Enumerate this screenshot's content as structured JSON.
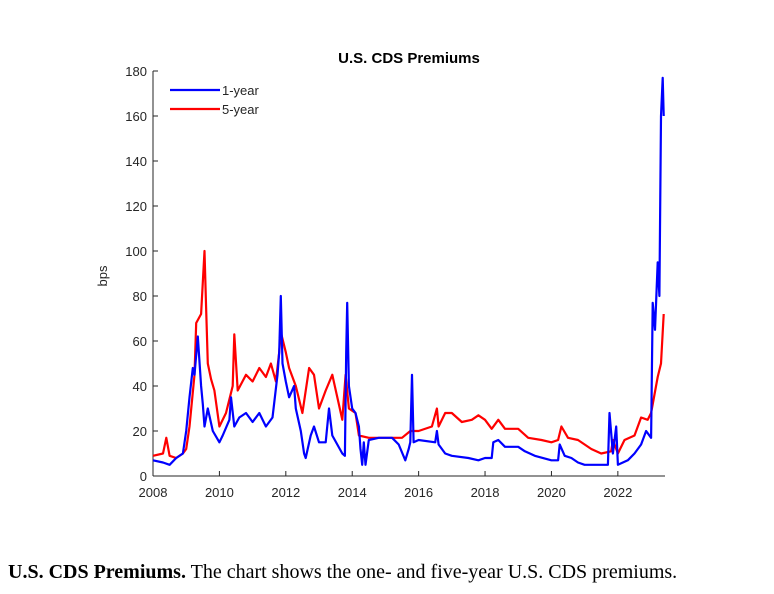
{
  "chart_data": {
    "type": "line",
    "title": "U.S. CDS Premiums",
    "xlabel": "",
    "ylabel": "bps",
    "xlim": [
      2008,
      2023.42
    ],
    "ylim": [
      0,
      180
    ],
    "xticks": [
      2008,
      2010,
      2012,
      2014,
      2016,
      2018,
      2020,
      2022
    ],
    "yticks": [
      0,
      20,
      40,
      60,
      80,
      100,
      120,
      140,
      160,
      180
    ],
    "grid": false,
    "legend": "top-left",
    "series": [
      {
        "name": "1-year",
        "color": "#0000ff",
        "points": [
          [
            2008,
            7
          ],
          [
            2008.3,
            6
          ],
          [
            2008.5,
            5
          ],
          [
            2008.7,
            8
          ],
          [
            2008.9,
            10
          ],
          [
            2009.0,
            20
          ],
          [
            2009.1,
            35
          ],
          [
            2009.2,
            48
          ],
          [
            2009.25,
            45
          ],
          [
            2009.35,
            62
          ],
          [
            2009.45,
            40
          ],
          [
            2009.5,
            32
          ],
          [
            2009.55,
            22
          ],
          [
            2009.65,
            30
          ],
          [
            2009.8,
            20
          ],
          [
            2010.0,
            15
          ],
          [
            2010.1,
            18
          ],
          [
            2010.3,
            25
          ],
          [
            2010.35,
            35
          ],
          [
            2010.45,
            22
          ],
          [
            2010.6,
            26
          ],
          [
            2010.8,
            28
          ],
          [
            2011.0,
            24
          ],
          [
            2011.2,
            28
          ],
          [
            2011.4,
            22
          ],
          [
            2011.6,
            26
          ],
          [
            2011.75,
            45
          ],
          [
            2011.8,
            55
          ],
          [
            2011.85,
            80
          ],
          [
            2011.9,
            50
          ],
          [
            2012.0,
            42
          ],
          [
            2012.1,
            35
          ],
          [
            2012.25,
            40
          ],
          [
            2012.3,
            30
          ],
          [
            2012.45,
            20
          ],
          [
            2012.55,
            10
          ],
          [
            2012.6,
            8
          ],
          [
            2012.75,
            18
          ],
          [
            2012.85,
            22
          ],
          [
            2013.0,
            15
          ],
          [
            2013.2,
            15
          ],
          [
            2013.3,
            30
          ],
          [
            2013.4,
            18
          ],
          [
            2013.55,
            14
          ],
          [
            2013.7,
            10
          ],
          [
            2013.78,
            9
          ],
          [
            2013.82,
            55
          ],
          [
            2013.85,
            77
          ],
          [
            2013.9,
            40
          ],
          [
            2014.0,
            30
          ],
          [
            2014.1,
            28
          ],
          [
            2014.2,
            22
          ],
          [
            2014.25,
            12
          ],
          [
            2014.3,
            5
          ],
          [
            2014.35,
            15
          ],
          [
            2014.4,
            5
          ],
          [
            2014.5,
            16
          ],
          [
            2014.8,
            17
          ],
          [
            2015.0,
            17
          ],
          [
            2015.2,
            17
          ],
          [
            2015.4,
            14
          ],
          [
            2015.6,
            7
          ],
          [
            2015.7,
            12
          ],
          [
            2015.75,
            15
          ],
          [
            2015.8,
            45
          ],
          [
            2015.85,
            15
          ],
          [
            2016.0,
            16
          ],
          [
            2016.5,
            15
          ],
          [
            2016.55,
            20
          ],
          [
            2016.6,
            14
          ],
          [
            2016.8,
            10
          ],
          [
            2017.0,
            9
          ],
          [
            2017.5,
            8
          ],
          [
            2017.8,
            7
          ],
          [
            2018.0,
            8
          ],
          [
            2018.2,
            8
          ],
          [
            2018.25,
            15
          ],
          [
            2018.4,
            16
          ],
          [
            2018.6,
            13
          ],
          [
            2019.0,
            13
          ],
          [
            2019.2,
            11
          ],
          [
            2019.5,
            9
          ],
          [
            2020.0,
            7
          ],
          [
            2020.2,
            7
          ],
          [
            2020.25,
            14
          ],
          [
            2020.4,
            9
          ],
          [
            2020.6,
            8
          ],
          [
            2020.8,
            6
          ],
          [
            2021.0,
            5
          ],
          [
            2021.3,
            5
          ],
          [
            2021.7,
            5
          ],
          [
            2021.75,
            28
          ],
          [
            2021.85,
            10
          ],
          [
            2021.95,
            22
          ],
          [
            2022.0,
            5
          ],
          [
            2022.3,
            7
          ],
          [
            2022.5,
            10
          ],
          [
            2022.7,
            14
          ],
          [
            2022.85,
            20
          ],
          [
            2023.0,
            17
          ],
          [
            2023.05,
            77
          ],
          [
            2023.12,
            65
          ],
          [
            2023.2,
            95
          ],
          [
            2023.25,
            80
          ],
          [
            2023.3,
            160
          ],
          [
            2023.35,
            177
          ],
          [
            2023.38,
            160
          ]
        ]
      },
      {
        "name": "5-year",
        "color": "#ff0000",
        "points": [
          [
            2008,
            9
          ],
          [
            2008.3,
            10
          ],
          [
            2008.4,
            17
          ],
          [
            2008.5,
            9
          ],
          [
            2008.7,
            8
          ],
          [
            2008.9,
            10
          ],
          [
            2009.0,
            12
          ],
          [
            2009.1,
            22
          ],
          [
            2009.25,
            45
          ],
          [
            2009.3,
            68
          ],
          [
            2009.45,
            72
          ],
          [
            2009.55,
            100
          ],
          [
            2009.6,
            75
          ],
          [
            2009.65,
            50
          ],
          [
            2009.75,
            43
          ],
          [
            2009.85,
            38
          ],
          [
            2010.0,
            22
          ],
          [
            2010.2,
            28
          ],
          [
            2010.4,
            40
          ],
          [
            2010.45,
            63
          ],
          [
            2010.55,
            38
          ],
          [
            2010.8,
            45
          ],
          [
            2011.0,
            42
          ],
          [
            2011.2,
            48
          ],
          [
            2011.4,
            44
          ],
          [
            2011.55,
            50
          ],
          [
            2011.7,
            42
          ],
          [
            2011.8,
            55
          ],
          [
            2011.85,
            64
          ],
          [
            2012.0,
            55
          ],
          [
            2012.1,
            48
          ],
          [
            2012.3,
            40
          ],
          [
            2012.5,
            28
          ],
          [
            2012.7,
            48
          ],
          [
            2012.85,
            45
          ],
          [
            2013.0,
            30
          ],
          [
            2013.2,
            38
          ],
          [
            2013.4,
            45
          ],
          [
            2013.55,
            35
          ],
          [
            2013.7,
            25
          ],
          [
            2013.8,
            45
          ],
          [
            2013.9,
            30
          ],
          [
            2014.1,
            28
          ],
          [
            2014.2,
            18
          ],
          [
            2014.5,
            17
          ],
          [
            2015.0,
            17
          ],
          [
            2015.5,
            17
          ],
          [
            2015.75,
            20
          ],
          [
            2016.0,
            20
          ],
          [
            2016.4,
            22
          ],
          [
            2016.55,
            30
          ],
          [
            2016.6,
            22
          ],
          [
            2016.8,
            28
          ],
          [
            2017.0,
            28
          ],
          [
            2017.3,
            24
          ],
          [
            2017.6,
            25
          ],
          [
            2017.8,
            27
          ],
          [
            2018.0,
            25
          ],
          [
            2018.2,
            21
          ],
          [
            2018.4,
            25
          ],
          [
            2018.6,
            21
          ],
          [
            2019.0,
            21
          ],
          [
            2019.3,
            17
          ],
          [
            2019.7,
            16
          ],
          [
            2020.0,
            15
          ],
          [
            2020.2,
            16
          ],
          [
            2020.3,
            22
          ],
          [
            2020.5,
            17
          ],
          [
            2020.8,
            16
          ],
          [
            2021.2,
            12
          ],
          [
            2021.5,
            10
          ],
          [
            2021.8,
            11
          ],
          [
            2021.85,
            16
          ],
          [
            2022.0,
            10
          ],
          [
            2022.2,
            16
          ],
          [
            2022.5,
            18
          ],
          [
            2022.7,
            26
          ],
          [
            2022.9,
            25
          ],
          [
            2023.0,
            28
          ],
          [
            2023.1,
            36
          ],
          [
            2023.2,
            44
          ],
          [
            2023.3,
            50
          ],
          [
            2023.38,
            72
          ]
        ]
      }
    ]
  },
  "caption": {
    "bold": "U.S. CDS Premiums.",
    "text": " The chart shows the one- and five-year U.S. CDS premiums."
  }
}
